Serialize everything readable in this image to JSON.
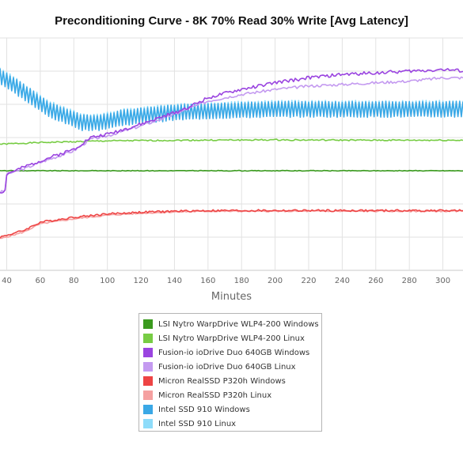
{
  "chart_data": {
    "type": "line",
    "title": "Preconditioning Curve - 8K 70% Read 30% Write [Avg Latency]",
    "xlabel": "Minutes",
    "ylabel": "",
    "xlim": [
      36,
      312
    ],
    "ylim": [
      0,
      7
    ],
    "x_ticks": [
      40,
      60,
      80,
      100,
      120,
      140,
      160,
      180,
      200,
      220,
      240,
      260,
      280,
      300
    ],
    "grid": true,
    "legend_position": "bottom",
    "series": [
      {
        "name": "LSI Nytro WarpDrive WLP4-200 Windows",
        "color": "#3a9a1e",
        "x": [
          36,
          60,
          100,
          150,
          200,
          250,
          312
        ],
        "y": [
          3.0,
          3.0,
          3.0,
          3.0,
          3.0,
          3.0,
          3.0
        ],
        "noise": 0.01,
        "zigzag": 0
      },
      {
        "name": "LSI Nytro WarpDrive WLP4-200 Linux",
        "color": "#77cc44",
        "x": [
          36,
          60,
          100,
          150,
          200,
          250,
          312
        ],
        "y": [
          3.8,
          3.85,
          3.9,
          3.92,
          3.93,
          3.92,
          3.92
        ],
        "noise": 0.02,
        "zigzag": 0
      },
      {
        "name": "Fusion-io ioDrive Duo 640GB Windows",
        "color": "#9a44e0",
        "x": [
          36,
          39,
          40,
          50,
          60,
          80,
          90,
          100,
          120,
          140,
          150,
          160,
          180,
          200,
          220,
          240,
          260,
          280,
          300,
          312
        ],
        "y": [
          2.35,
          2.4,
          2.9,
          3.1,
          3.3,
          3.65,
          4.0,
          4.1,
          4.4,
          4.75,
          4.95,
          5.2,
          5.45,
          5.65,
          5.8,
          5.9,
          5.95,
          6.0,
          6.05,
          6.0
        ],
        "noise": 0.05,
        "zigzag": 0
      },
      {
        "name": "Fusion-io ioDrive Duo 640GB Linux",
        "color": "#c49af0",
        "x": [
          36,
          39,
          40,
          50,
          60,
          80,
          90,
          100,
          120,
          140,
          160,
          180,
          200,
          220,
          240,
          260,
          280,
          300,
          312
        ],
        "y": [
          2.35,
          2.4,
          2.9,
          3.05,
          3.25,
          3.6,
          3.95,
          4.05,
          4.35,
          4.7,
          5.1,
          5.3,
          5.45,
          5.55,
          5.6,
          5.65,
          5.7,
          5.8,
          5.8
        ],
        "noise": 0.04,
        "zigzag": 0
      },
      {
        "name": "Micron RealSSD P320h Windows",
        "color": "#ee4444",
        "x": [
          36,
          50,
          60,
          80,
          100,
          120,
          140,
          160,
          180,
          200,
          250,
          312
        ],
        "y": [
          1.0,
          1.2,
          1.45,
          1.6,
          1.7,
          1.75,
          1.78,
          1.8,
          1.8,
          1.8,
          1.8,
          1.8
        ],
        "noise": 0.03,
        "zigzag": 0
      },
      {
        "name": "Micron RealSSD P320h Linux",
        "color": "#f5a0a0",
        "x": [
          36,
          50,
          60,
          80,
          100,
          120,
          140,
          160,
          180,
          200,
          250,
          312
        ],
        "y": [
          0.95,
          1.15,
          1.4,
          1.55,
          1.66,
          1.72,
          1.76,
          1.78,
          1.78,
          1.78,
          1.78,
          1.78
        ],
        "noise": 0.02,
        "zigzag": 0
      },
      {
        "name": "Intel SSD 910 Windows",
        "color": "#3aa8e6",
        "x": [
          36,
          45,
          55,
          65,
          75,
          85,
          95,
          100,
          110,
          120,
          140,
          160,
          200,
          250,
          312
        ],
        "y": [
          5.85,
          5.55,
          5.2,
          4.85,
          4.65,
          4.45,
          4.45,
          4.5,
          4.6,
          4.65,
          4.75,
          4.8,
          4.85,
          4.85,
          4.85
        ],
        "noise": 0.02,
        "zigzag": 0.22
      },
      {
        "name": "Intel SSD 910 Linux",
        "color": "#8edcfa",
        "x": [
          36,
          45,
          55,
          65,
          75,
          85,
          95,
          100,
          110,
          120,
          140,
          160,
          200,
          250,
          312
        ],
        "y": [
          5.9,
          5.6,
          5.25,
          4.9,
          4.7,
          4.5,
          4.5,
          4.55,
          4.65,
          4.7,
          4.8,
          4.85,
          4.9,
          4.9,
          4.9
        ],
        "noise": 0.02,
        "zigzag": 0.2
      }
    ]
  }
}
